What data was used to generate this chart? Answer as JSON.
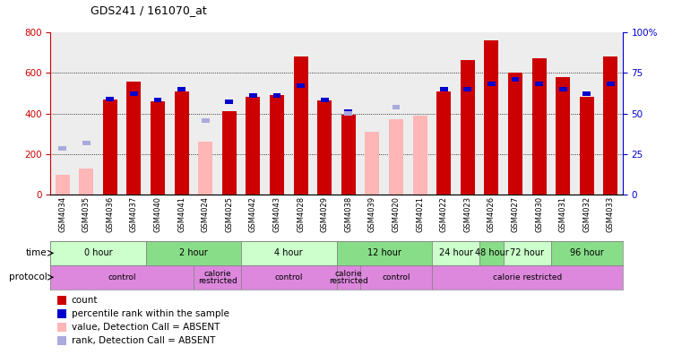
{
  "title": "GDS241 / 161070_at",
  "samples": [
    "GSM4034",
    "GSM4035",
    "GSM4036",
    "GSM4037",
    "GSM4040",
    "GSM4041",
    "GSM4024",
    "GSM4025",
    "GSM4042",
    "GSM4043",
    "GSM4028",
    "GSM4029",
    "GSM4038",
    "GSM4039",
    "GSM4020",
    "GSM4021",
    "GSM4022",
    "GSM4023",
    "GSM4026",
    "GSM4027",
    "GSM4030",
    "GSM4031",
    "GSM4032",
    "GSM4033"
  ],
  "count_values": [
    null,
    null,
    470,
    555,
    460,
    510,
    null,
    410,
    480,
    490,
    680,
    465,
    395,
    null,
    null,
    null,
    510,
    660,
    760,
    600,
    670,
    580,
    480,
    680
  ],
  "rank_values": [
    null,
    null,
    59,
    62,
    58,
    65,
    null,
    57,
    61,
    61,
    67,
    58,
    51,
    null,
    null,
    null,
    65,
    65,
    68,
    71,
    68,
    65,
    62,
    68
  ],
  "absent_count": [
    100,
    130,
    null,
    null,
    null,
    null,
    260,
    null,
    null,
    null,
    null,
    null,
    null,
    310,
    370,
    390,
    null,
    null,
    null,
    null,
    null,
    null,
    null,
    null
  ],
  "absent_rank": [
    230,
    255,
    null,
    null,
    null,
    null,
    365,
    null,
    null,
    null,
    null,
    null,
    400,
    null,
    430,
    null,
    null,
    null,
    null,
    null,
    null,
    null,
    null,
    null
  ],
  "time_groups": [
    {
      "label": "0 hour",
      "cols": [
        0,
        1,
        2,
        3
      ]
    },
    {
      "label": "2 hour",
      "cols": [
        4,
        5,
        6,
        7
      ]
    },
    {
      "label": "4 hour",
      "cols": [
        8,
        9,
        10,
        11
      ]
    },
    {
      "label": "12 hour",
      "cols": [
        12,
        13,
        14,
        15
      ]
    },
    {
      "label": "24 hour",
      "cols": [
        16,
        17
      ]
    },
    {
      "label": "48 hour",
      "cols": [
        18
      ]
    },
    {
      "label": "72 hour",
      "cols": [
        19,
        20
      ]
    },
    {
      "label": "96 hour",
      "cols": [
        21,
        22,
        23
      ]
    }
  ],
  "protocol_groups": [
    {
      "label": "control",
      "cols": [
        0,
        1,
        2,
        3,
        4,
        5
      ]
    },
    {
      "label": "calorie\nrestricted",
      "cols": [
        6,
        7
      ]
    },
    {
      "label": "control",
      "cols": [
        8,
        9,
        10,
        11
      ]
    },
    {
      "label": "calorie\nrestricted",
      "cols": [
        12
      ]
    },
    {
      "label": "control",
      "cols": [
        13,
        14,
        15
      ]
    },
    {
      "label": "calorie restricted",
      "cols": [
        16,
        17,
        18,
        19,
        20,
        21,
        22,
        23
      ]
    }
  ],
  "color_red": "#cc0000",
  "color_pink": "#ffb6b6",
  "color_blue": "#0000cc",
  "color_lightblue": "#aaaadd",
  "color_time_light": "#ccffcc",
  "color_time_dark": "#88dd88",
  "color_protocol_bg": "#dd88dd",
  "color_sample_bg": "#cccccc",
  "ylim_left": [
    0,
    800
  ],
  "ylim_right": [
    0,
    100
  ],
  "yticks_left": [
    0,
    200,
    400,
    600,
    800
  ],
  "yticks_right": [
    0,
    25,
    50,
    75,
    100
  ],
  "legend_items": [
    {
      "color": "#cc0000",
      "label": "count"
    },
    {
      "color": "#0000cc",
      "label": "percentile rank within the sample"
    },
    {
      "color": "#ffb6b6",
      "label": "value, Detection Call = ABSENT"
    },
    {
      "color": "#aaaadd",
      "label": "rank, Detection Call = ABSENT"
    }
  ]
}
